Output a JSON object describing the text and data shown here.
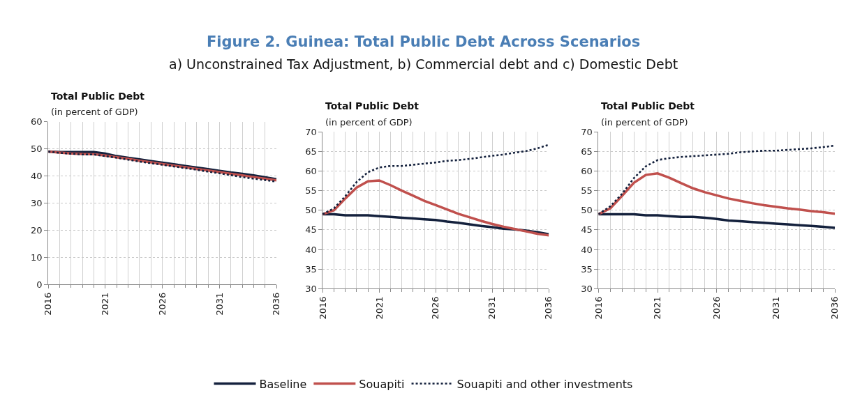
{
  "chart_data": [
    {
      "type": "line",
      "title": "Total Public Debt",
      "subtitle": "(in percent of GDP)",
      "annotations": [
        "Figure 2. Guinea: Total Public Debt Across Scenarios",
        "a) Unconstrained Tax Adjustment, b) Commercial debt and c) Domestic Debt"
      ],
      "x": [
        2016,
        2017,
        2018,
        2019,
        2020,
        2021,
        2022,
        2023,
        2024,
        2025,
        2026,
        2027,
        2028,
        2029,
        2030,
        2031,
        2032,
        2033,
        2034,
        2035,
        2036
      ],
      "xlim": [
        2016,
        2036
      ],
      "xticks": [
        2016,
        2021,
        2026,
        2031,
        2036
      ],
      "ylim": [
        0,
        60
      ],
      "yticks": [
        0,
        10,
        20,
        30,
        40,
        50,
        60
      ],
      "grid": true,
      "legend": "bottom",
      "marker": "none",
      "series": [
        {
          "name": "Baseline",
          "color": "#14213d",
          "line_style": "solid",
          "values": [
            49,
            48.8,
            48.8,
            48.8,
            48.8,
            48.2,
            47.3,
            46.7,
            46.1,
            45.5,
            44.9,
            44.3,
            43.7,
            43.1,
            42.5,
            41.9,
            41.3,
            40.8,
            40.2,
            39.5,
            38.8
          ]
        },
        {
          "name": "Souapiti",
          "color": "#c0504d",
          "line_style": "solid",
          "values": [
            49,
            48.6,
            48.3,
            48.1,
            48,
            47.5,
            46.9,
            46.3,
            45.6,
            45,
            44.4,
            43.8,
            43.2,
            42.6,
            42,
            41.4,
            40.8,
            40.2,
            39.6,
            39,
            38.4
          ]
        },
        {
          "name": "Souapiti and other investments",
          "color": "#14213d",
          "line_style": "dotted",
          "values": [
            49,
            48.5,
            48.2,
            47.9,
            47.9,
            47.3,
            46.7,
            46,
            45.3,
            44.7,
            44.1,
            43.5,
            42.9,
            42.3,
            41.6,
            41,
            40.3,
            39.6,
            39,
            38.5,
            37.9
          ]
        }
      ]
    },
    {
      "type": "line",
      "title": "Total Public Debt",
      "subtitle": "(in percent of GDP)",
      "x": [
        2016,
        2017,
        2018,
        2019,
        2020,
        2021,
        2022,
        2023,
        2024,
        2025,
        2026,
        2027,
        2028,
        2029,
        2030,
        2031,
        2032,
        2033,
        2034,
        2035,
        2036
      ],
      "xlim": [
        2016,
        2036
      ],
      "xticks": [
        2016,
        2021,
        2026,
        2031,
        2036
      ],
      "ylim": [
        30,
        70
      ],
      "yticks": [
        30,
        35,
        40,
        45,
        50,
        55,
        60,
        65,
        70
      ],
      "grid": true,
      "marker": "none",
      "series": [
        {
          "color": "#14213d",
          "line_style": "solid",
          "values": [
            49,
            49,
            48.7,
            48.7,
            48.7,
            48.5,
            48.3,
            48.1,
            47.9,
            47.7,
            47.5,
            47.1,
            46.8,
            46.4,
            46.0,
            45.7,
            45.3,
            45.1,
            44.8,
            44.4,
            43.9
          ]
        },
        {
          "color": "#c0504d",
          "line_style": "solid",
          "values": [
            49,
            50.0,
            53.0,
            55.8,
            57.4,
            57.6,
            56.4,
            55.0,
            53.7,
            52.4,
            51.3,
            50.2,
            49.1,
            48.2,
            47.3,
            46.5,
            45.8,
            45.2,
            44.6,
            44.0,
            43.6
          ]
        },
        {
          "color": "#14213d",
          "line_style": "dotted",
          "values": [
            49,
            50.5,
            53.6,
            57.2,
            59.7,
            60.9,
            61.3,
            61.3,
            61.6,
            61.9,
            62.2,
            62.6,
            62.8,
            63.1,
            63.5,
            63.9,
            64.2,
            64.7,
            65.1,
            65.8,
            66.7
          ]
        }
      ]
    },
    {
      "type": "line",
      "title": "Total Public Debt",
      "subtitle": "(in percent of GDP)",
      "x": [
        2016,
        2017,
        2018,
        2019,
        2020,
        2021,
        2022,
        2023,
        2024,
        2025,
        2026,
        2027,
        2028,
        2029,
        2030,
        2031,
        2032,
        2033,
        2034,
        2035,
        2036
      ],
      "xlim": [
        2016,
        2036
      ],
      "xticks": [
        2016,
        2021,
        2026,
        2031,
        2036
      ],
      "ylim": [
        30,
        70
      ],
      "yticks": [
        30,
        35,
        40,
        45,
        50,
        55,
        60,
        65,
        70
      ],
      "grid": true,
      "marker": "none",
      "series": [
        {
          "color": "#14213d",
          "line_style": "solid",
          "values": [
            49,
            49,
            49,
            49,
            48.7,
            48.7,
            48.5,
            48.3,
            48.3,
            48.1,
            47.8,
            47.4,
            47.2,
            47,
            46.8,
            46.6,
            46.4,
            46.2,
            46,
            45.8,
            45.5
          ]
        },
        {
          "color": "#c0504d",
          "line_style": "solid",
          "values": [
            49,
            50.5,
            53.7,
            57.0,
            59.0,
            59.4,
            58.3,
            56.9,
            55.6,
            54.6,
            53.8,
            53.0,
            52.4,
            51.8,
            51.3,
            50.9,
            50.5,
            50.2,
            49.8,
            49.5,
            49.1
          ]
        },
        {
          "color": "#14213d",
          "line_style": "dotted",
          "values": [
            49,
            51,
            54.2,
            58.2,
            61.2,
            62.8,
            63.3,
            63.6,
            63.8,
            64.0,
            64.2,
            64.4,
            64.8,
            65.0,
            65.2,
            65.2,
            65.4,
            65.6,
            65.8,
            66.1,
            66.5
          ]
        }
      ]
    }
  ]
}
